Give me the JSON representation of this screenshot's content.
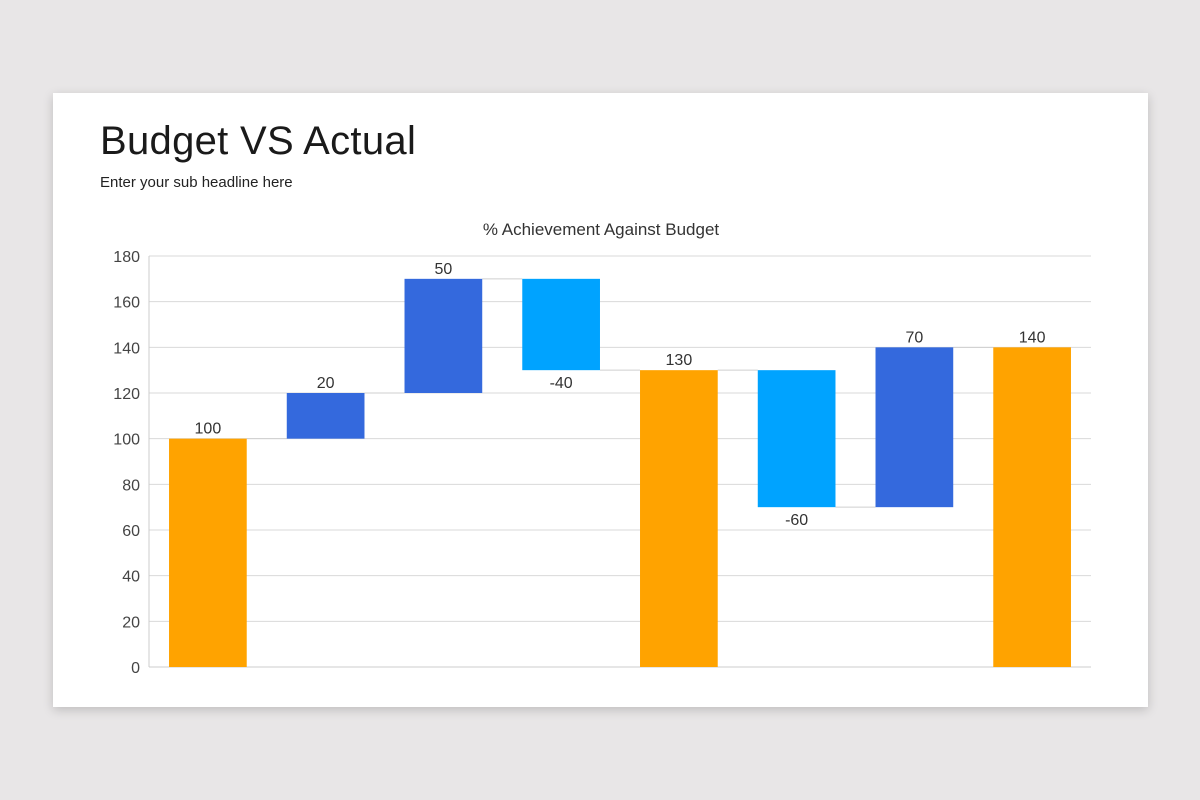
{
  "slide": {
    "title": "Budget VS Actual",
    "subtitle": "Enter your sub headline here"
  },
  "chart_data": {
    "type": "bar",
    "subtype": "waterfall",
    "title": "% Achievement Against Budget",
    "xlabel": "",
    "ylabel": "",
    "ylim": [
      0,
      180
    ],
    "yticks": [
      0,
      20,
      40,
      60,
      80,
      100,
      120,
      140,
      160,
      180
    ],
    "grid": true,
    "legend": "none",
    "bars": [
      {
        "kind": "total",
        "start": 0,
        "end": 100,
        "label": "100"
      },
      {
        "kind": "increase",
        "start": 100,
        "end": 120,
        "label": "20"
      },
      {
        "kind": "increase",
        "start": 120,
        "end": 170,
        "label": "50"
      },
      {
        "kind": "decrease",
        "start": 170,
        "end": 130,
        "label": "-40"
      },
      {
        "kind": "total",
        "start": 0,
        "end": 130,
        "label": "130"
      },
      {
        "kind": "decrease",
        "start": 130,
        "end": 70,
        "label": "-60"
      },
      {
        "kind": "increase",
        "start": 70,
        "end": 140,
        "label": "70"
      },
      {
        "kind": "total",
        "start": 0,
        "end": 140,
        "label": "140"
      }
    ],
    "colors": {
      "total": "#ffa300",
      "increase": "#3469dd",
      "decrease": "#00a3ff"
    }
  }
}
